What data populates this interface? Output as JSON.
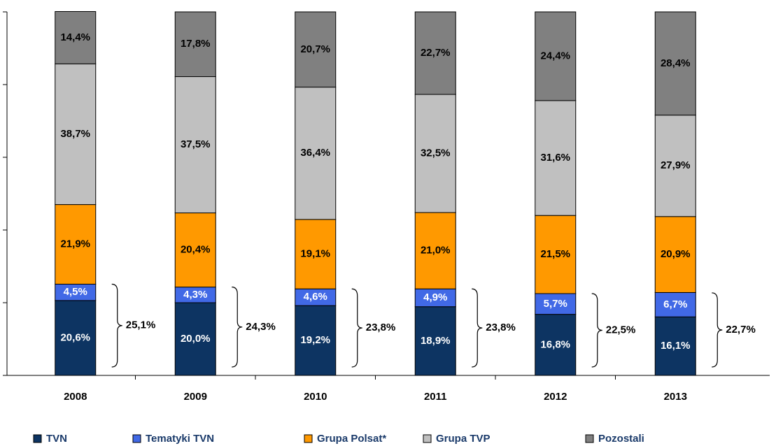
{
  "chart_data": {
    "type": "stacked_bar",
    "categories": [
      "2008",
      "2009",
      "2010",
      "2011",
      "2012",
      "2013"
    ],
    "series": [
      {
        "name": "TVN",
        "color": "#0d3462",
        "label_color": "#ffffff",
        "values": [
          20.6,
          20.0,
          19.2,
          18.9,
          16.8,
          16.1
        ],
        "value_labels": [
          "20,6%",
          "20,0%",
          "19,2%",
          "18,9%",
          "16,8%",
          "16,1%"
        ]
      },
      {
        "name": "Tematyki TVN",
        "color": "#4169e6",
        "label_color": "#ffffff",
        "values": [
          4.5,
          4.3,
          4.6,
          4.9,
          5.7,
          6.7
        ],
        "value_labels": [
          "4,5%",
          "4,3%",
          "4,6%",
          "4,9%",
          "5,7%",
          "6,7%"
        ]
      },
      {
        "name": "Grupa Polsat*",
        "color": "#ff9900",
        "label_color": "#000000",
        "values": [
          21.9,
          20.4,
          19.1,
          21.0,
          21.5,
          20.9
        ],
        "value_labels": [
          "21,9%",
          "20,4%",
          "19,1%",
          "21,0%",
          "21,5%",
          "20,9%"
        ]
      },
      {
        "name": "Grupa TVP",
        "color": "#c0c0c0",
        "label_color": "#000000",
        "values": [
          38.7,
          37.5,
          36.4,
          32.5,
          31.6,
          27.9
        ],
        "value_labels": [
          "38,7%",
          "37,5%",
          "36,4%",
          "32,5%",
          "31,6%",
          "27,9%"
        ]
      },
      {
        "name": "Pozostali",
        "color": "#808080",
        "label_color": "#000000",
        "values": [
          14.4,
          17.8,
          20.7,
          22.7,
          24.4,
          28.4
        ],
        "value_labels": [
          "14,4%",
          "17,8%",
          "20,7%",
          "22,7%",
          "24,4%",
          "28,4%"
        ]
      }
    ],
    "brace_values": [
      25.1,
      24.3,
      23.8,
      23.8,
      22.5,
      22.7
    ],
    "brace_labels": [
      "25,1%",
      "24,3%",
      "23,8%",
      "23,8%",
      "22,5%",
      "22,7%"
    ],
    "ylim": [
      0,
      100
    ],
    "yticks": [
      0,
      20,
      40,
      60,
      80,
      100
    ],
    "legend": "bottom"
  }
}
